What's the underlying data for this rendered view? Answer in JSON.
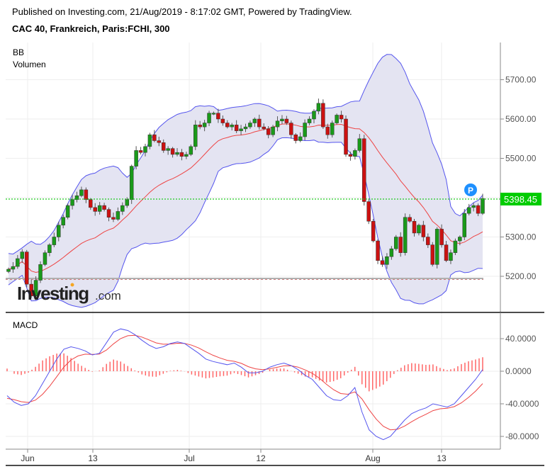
{
  "header": {
    "published": "Published on Investing.com, 21/Aug/2019 - 8:17:02 GMT, Powered by TradingView.",
    "symbol_title": "CAC 40, Frankreich, Paris:FCHI, 300"
  },
  "price_pane": {
    "indicators": [
      "BB",
      "Volumen"
    ],
    "last_price_label": "5398.45",
    "last_price_color": "#00cc00",
    "marker_label": "P",
    "watermark_main": "Investing",
    "watermark_suffix": ".com"
  },
  "macd_pane": {
    "title": "MACD"
  },
  "colors": {
    "up": "#1a9a1a",
    "down": "#cc1111",
    "bb_band": "#5555ee",
    "bb_fill": "#e4e4f2",
    "bb_basis": "#ee4444",
    "macd": "#5555ee",
    "signal": "#ee4444",
    "hist": "#ff6666"
  },
  "chart_data": [
    {
      "type": "candlestick",
      "title": "CAC 40, Frankreich, Paris:FCHI, 300",
      "indicators": [
        "Bollinger Bands",
        "Volume"
      ],
      "y_ticks": [
        "5700.00",
        "5600.00",
        "5500.00",
        "5300.00",
        "5200.00"
      ],
      "ylim": [
        5130,
        5790
      ],
      "x_ticks": [
        "Jun",
        "13",
        "Jul",
        "12",
        "Aug",
        "13"
      ],
      "last_price": 5398.45,
      "horizontal_lines": [
        {
          "value": 5398.45,
          "style": "dotted",
          "color": "#00cc00"
        },
        {
          "value": 5195,
          "style": "solid",
          "color": "#999999"
        }
      ],
      "close_approx": [
        5218,
        5225,
        5245,
        5262,
        5180,
        5150,
        5190,
        5230,
        5260,
        5280,
        5300,
        5330,
        5350,
        5380,
        5395,
        5405,
        5420,
        5395,
        5375,
        5365,
        5380,
        5370,
        5350,
        5345,
        5365,
        5380,
        5395,
        5480,
        5520,
        5515,
        5530,
        5560,
        5545,
        5540,
        5520,
        5525,
        5510,
        5515,
        5505,
        5510,
        5530,
        5585,
        5580,
        5590,
        5615,
        5615,
        5600,
        5590,
        5580,
        5585,
        5570,
        5575,
        5580,
        5590,
        5600,
        5580,
        5575,
        5560,
        5580,
        5595,
        5600,
        5590,
        5560,
        5545,
        5555,
        5590,
        5600,
        5620,
        5640,
        5580,
        5560,
        5590,
        5610,
        5600,
        5510,
        5505,
        5520,
        5550,
        5390,
        5340,
        5290,
        5240,
        5230,
        5250,
        5270,
        5300,
        5260,
        5350,
        5340,
        5310,
        5330,
        5300,
        5280,
        5230,
        5320,
        5280,
        5240,
        5260,
        5290,
        5300,
        5360,
        5375,
        5380,
        5360,
        5398
      ]
    },
    {
      "type": "line",
      "title": "MACD",
      "y_ticks": [
        "40.0000",
        "0.0000",
        "-40.0000",
        "-80.0000"
      ],
      "ylim": [
        -95,
        60
      ],
      "series": [
        {
          "name": "MACD",
          "color": "#5555ee"
        },
        {
          "name": "Signal",
          "color": "#ee4444"
        },
        {
          "name": "Histogram",
          "type": "bar",
          "color": "#ff6666"
        }
      ],
      "macd_approx": [
        -30,
        -38,
        -42,
        -40,
        -30,
        -15,
        0,
        15,
        27,
        30,
        28,
        25,
        20,
        22,
        35,
        48,
        52,
        50,
        45,
        38,
        32,
        28,
        30,
        34,
        36,
        34,
        28,
        22,
        15,
        12,
        10,
        8,
        10,
        5,
        -2,
        -2,
        0,
        5,
        8,
        10,
        7,
        2,
        -5,
        -10,
        -20,
        -30,
        -35,
        -36,
        -30,
        -20,
        -50,
        -72,
        -80,
        -84,
        -80,
        -70,
        -60,
        -52,
        -48,
        -45,
        -40,
        -42,
        -44,
        -40,
        -30,
        -20,
        -10,
        2
      ]
    }
  ]
}
